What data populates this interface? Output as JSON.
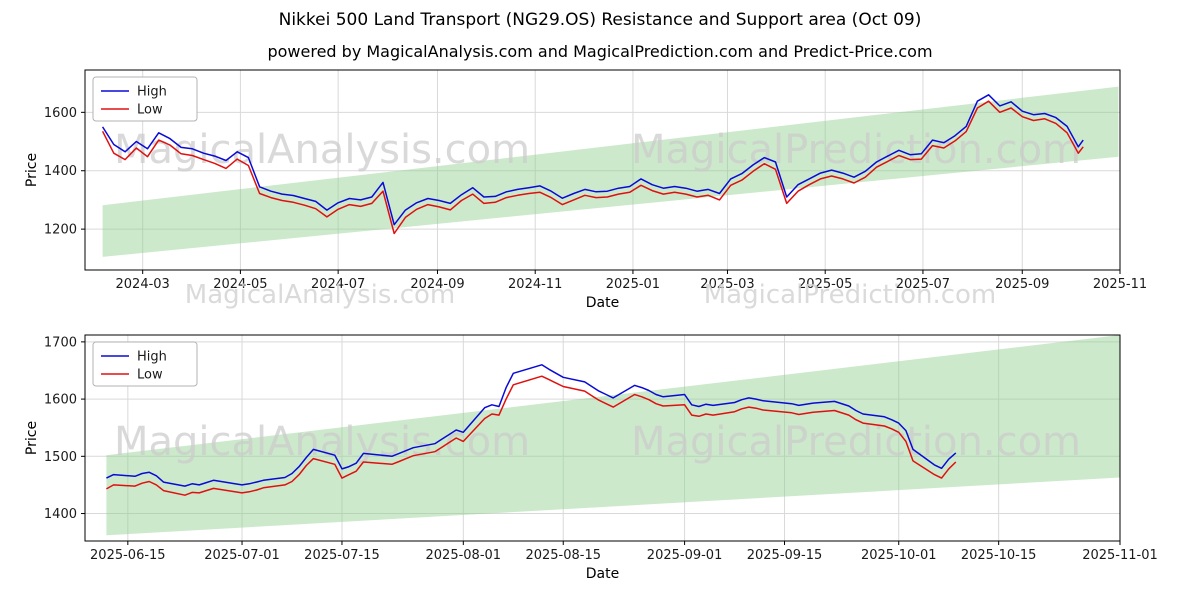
{
  "header": {
    "title": "Nikkei 500 Land Transport (NG29.OS) Resistance and Support area (Oct 09)",
    "subtitle": "powered by MagicalAnalysis.com and MagicalPrediction.com and Predict-Price.com"
  },
  "watermarks": {
    "left": "MagicalAnalysis.com",
    "right": "MagicalPrediction.com"
  },
  "colors": {
    "high": "#0a0ad8",
    "low": "#e01010",
    "band": "#8fcf8f",
    "grid": "#d9d9d9",
    "spine": "#000000",
    "legend_border": "#b3b3b3"
  },
  "chart_data": [
    {
      "type": "line",
      "xlabel": "Date",
      "ylabel": "Price",
      "legend": [
        "High",
        "Low"
      ],
      "xlim": [
        "2024-01-25",
        "2025-11-01"
      ],
      "ylim": [
        1060,
        1745
      ],
      "yticks": [
        1200,
        1400,
        1600
      ],
      "xticks": [
        "2024-03",
        "2024-05",
        "2024-07",
        "2024-09",
        "2024-11",
        "2025-01",
        "2025-03",
        "2025-05",
        "2025-07",
        "2025-09",
        "2025-11"
      ],
      "band": {
        "x": [
          "2024-02-05",
          "2025-10-31"
        ],
        "lower": [
          1105,
          1448
        ],
        "upper": [
          1282,
          1688
        ]
      },
      "x": [
        "2024-02-05",
        "2024-02-12",
        "2024-02-19",
        "2024-02-26",
        "2024-03-04",
        "2024-03-11",
        "2024-03-18",
        "2024-03-25",
        "2024-04-01",
        "2024-04-08",
        "2024-04-15",
        "2024-04-22",
        "2024-04-29",
        "2024-05-06",
        "2024-05-13",
        "2024-05-20",
        "2024-05-27",
        "2024-06-03",
        "2024-06-10",
        "2024-06-17",
        "2024-06-24",
        "2024-07-01",
        "2024-07-08",
        "2024-07-15",
        "2024-07-22",
        "2024-07-29",
        "2024-08-05",
        "2024-08-12",
        "2024-08-19",
        "2024-08-26",
        "2024-09-02",
        "2024-09-09",
        "2024-09-16",
        "2024-09-23",
        "2024-09-30",
        "2024-10-07",
        "2024-10-14",
        "2024-10-21",
        "2024-10-28",
        "2024-11-04",
        "2024-11-11",
        "2024-11-18",
        "2024-11-25",
        "2024-12-02",
        "2024-12-09",
        "2024-12-16",
        "2024-12-23",
        "2024-12-30",
        "2025-01-06",
        "2025-01-13",
        "2025-01-20",
        "2025-01-27",
        "2025-02-03",
        "2025-02-10",
        "2025-02-17",
        "2025-02-24",
        "2025-03-03",
        "2025-03-10",
        "2025-03-17",
        "2025-03-24",
        "2025-03-31",
        "2025-04-07",
        "2025-04-14",
        "2025-04-21",
        "2025-04-28",
        "2025-05-05",
        "2025-05-12",
        "2025-05-19",
        "2025-05-26",
        "2025-06-02",
        "2025-06-09",
        "2025-06-16",
        "2025-06-23",
        "2025-06-30",
        "2025-07-07",
        "2025-07-14",
        "2025-07-21",
        "2025-07-28",
        "2025-08-04",
        "2025-08-11",
        "2025-08-18",
        "2025-08-25",
        "2025-09-01",
        "2025-09-08",
        "2025-09-15",
        "2025-09-22",
        "2025-09-29",
        "2025-10-06",
        "2025-10-09"
      ],
      "series": [
        {
          "name": "High",
          "values": [
            1550,
            1490,
            1465,
            1500,
            1475,
            1530,
            1510,
            1480,
            1475,
            1460,
            1450,
            1435,
            1465,
            1445,
            1345,
            1330,
            1320,
            1315,
            1305,
            1295,
            1265,
            1290,
            1305,
            1300,
            1310,
            1360,
            1215,
            1265,
            1290,
            1305,
            1298,
            1288,
            1318,
            1342,
            1310,
            1312,
            1328,
            1336,
            1342,
            1348,
            1330,
            1306,
            1322,
            1336,
            1328,
            1330,
            1340,
            1346,
            1372,
            1352,
            1340,
            1346,
            1340,
            1330,
            1336,
            1322,
            1372,
            1390,
            1420,
            1445,
            1430,
            1310,
            1352,
            1372,
            1392,
            1402,
            1392,
            1378,
            1398,
            1430,
            1450,
            1470,
            1455,
            1458,
            1505,
            1496,
            1520,
            1552,
            1638,
            1660,
            1622,
            1636,
            1604,
            1592,
            1596,
            1582,
            1552,
            1482,
            1505
          ]
        },
        {
          "name": "Low",
          "values": [
            1535,
            1460,
            1438,
            1478,
            1448,
            1505,
            1488,
            1458,
            1452,
            1438,
            1425,
            1408,
            1440,
            1418,
            1322,
            1308,
            1298,
            1292,
            1282,
            1270,
            1242,
            1268,
            1284,
            1278,
            1288,
            1330,
            1185,
            1240,
            1268,
            1284,
            1276,
            1266,
            1298,
            1320,
            1288,
            1292,
            1308,
            1316,
            1322,
            1326,
            1308,
            1284,
            1300,
            1316,
            1308,
            1310,
            1320,
            1326,
            1350,
            1332,
            1320,
            1326,
            1320,
            1310,
            1316,
            1300,
            1350,
            1368,
            1398,
            1424,
            1405,
            1288,
            1330,
            1352,
            1372,
            1382,
            1372,
            1358,
            1378,
            1412,
            1432,
            1452,
            1438,
            1440,
            1486,
            1478,
            1502,
            1534,
            1615,
            1638,
            1600,
            1615,
            1585,
            1572,
            1578,
            1562,
            1530,
            1460,
            1482
          ]
        }
      ]
    },
    {
      "type": "line",
      "xlabel": "Date",
      "ylabel": "Price",
      "legend": [
        "High",
        "Low"
      ],
      "xlim": [
        "2025-06-09",
        "2025-11-01"
      ],
      "ylim": [
        1352,
        1712
      ],
      "yticks": [
        1400,
        1500,
        1600,
        1700
      ],
      "xticks": [
        "2025-06-15",
        "2025-07-01",
        "2025-07-15",
        "2025-08-01",
        "2025-08-15",
        "2025-09-01",
        "2025-09-15",
        "2025-10-01",
        "2025-10-15",
        "2025-11-01"
      ],
      "band": {
        "x": [
          "2025-06-12",
          "2025-11-01"
        ],
        "lower": [
          1362,
          1463
        ],
        "upper": [
          1502,
          1712
        ]
      },
      "x": [
        "2025-06-12",
        "2025-06-13",
        "2025-06-16",
        "2025-06-17",
        "2025-06-18",
        "2025-06-19",
        "2025-06-20",
        "2025-06-23",
        "2025-06-24",
        "2025-06-25",
        "2025-06-26",
        "2025-06-27",
        "2025-06-30",
        "2025-07-01",
        "2025-07-02",
        "2025-07-03",
        "2025-07-04",
        "2025-07-07",
        "2025-07-08",
        "2025-07-09",
        "2025-07-10",
        "2025-07-11",
        "2025-07-14",
        "2025-07-15",
        "2025-07-16",
        "2025-07-17",
        "2025-07-18",
        "2025-07-22",
        "2025-07-23",
        "2025-07-24",
        "2025-07-25",
        "2025-07-28",
        "2025-07-29",
        "2025-07-30",
        "2025-07-31",
        "2025-08-01",
        "2025-08-04",
        "2025-08-05",
        "2025-08-06",
        "2025-08-07",
        "2025-08-08",
        "2025-08-12",
        "2025-08-13",
        "2025-08-14",
        "2025-08-15",
        "2025-08-18",
        "2025-08-19",
        "2025-08-20",
        "2025-08-21",
        "2025-08-22",
        "2025-08-25",
        "2025-08-26",
        "2025-08-27",
        "2025-08-28",
        "2025-08-29",
        "2025-09-01",
        "2025-09-02",
        "2025-09-03",
        "2025-09-04",
        "2025-09-05",
        "2025-09-08",
        "2025-09-09",
        "2025-09-10",
        "2025-09-11",
        "2025-09-12",
        "2025-09-16",
        "2025-09-17",
        "2025-09-18",
        "2025-09-19",
        "2025-09-22",
        "2025-09-24",
        "2025-09-25",
        "2025-09-26",
        "2025-09-29",
        "2025-09-30",
        "2025-10-01",
        "2025-10-02",
        "2025-10-03",
        "2025-10-06",
        "2025-10-07",
        "2025-10-08",
        "2025-10-09"
      ],
      "series": [
        {
          "name": "High",
          "values": [
            1462,
            1468,
            1465,
            1470,
            1472,
            1466,
            1455,
            1448,
            1452,
            1450,
            1454,
            1458,
            1452,
            1450,
            1452,
            1455,
            1458,
            1463,
            1470,
            1482,
            1498,
            1512,
            1502,
            1478,
            1482,
            1488,
            1505,
            1500,
            1505,
            1510,
            1515,
            1522,
            1530,
            1538,
            1546,
            1542,
            1585,
            1590,
            1587,
            1620,
            1645,
            1660,
            1652,
            1645,
            1638,
            1630,
            1622,
            1614,
            1608,
            1602,
            1624,
            1620,
            1615,
            1608,
            1604,
            1608,
            1590,
            1587,
            1591,
            1589,
            1594,
            1599,
            1602,
            1600,
            1597,
            1592,
            1589,
            1591,
            1593,
            1596,
            1588,
            1580,
            1574,
            1569,
            1564,
            1558,
            1545,
            1512,
            1485,
            1479,
            1495,
            1506
          ]
        },
        {
          "name": "Low",
          "values": [
            1443,
            1450,
            1448,
            1453,
            1456,
            1450,
            1440,
            1432,
            1437,
            1436,
            1440,
            1444,
            1438,
            1436,
            1438,
            1441,
            1445,
            1450,
            1456,
            1468,
            1484,
            1496,
            1486,
            1462,
            1468,
            1474,
            1490,
            1486,
            1491,
            1496,
            1501,
            1508,
            1516,
            1524,
            1532,
            1526,
            1566,
            1574,
            1572,
            1600,
            1625,
            1640,
            1634,
            1628,
            1622,
            1614,
            1606,
            1598,
            1592,
            1586,
            1608,
            1604,
            1599,
            1592,
            1588,
            1590,
            1572,
            1570,
            1574,
            1572,
            1578,
            1583,
            1586,
            1584,
            1581,
            1576,
            1573,
            1575,
            1577,
            1580,
            1572,
            1564,
            1558,
            1553,
            1548,
            1542,
            1526,
            1492,
            1468,
            1462,
            1478,
            1490
          ]
        }
      ]
    }
  ]
}
